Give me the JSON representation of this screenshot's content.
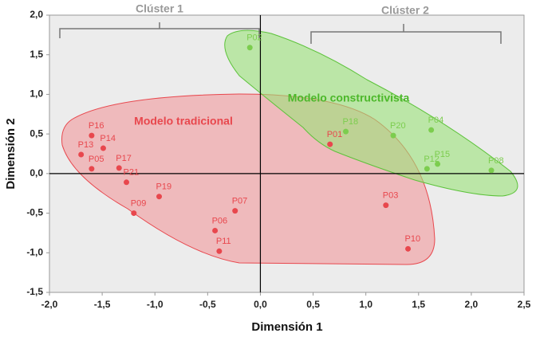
{
  "chart_data": {
    "type": "scatter",
    "x_label": "Dimensión 1",
    "y_label": "Dimensión 2",
    "xlim": [
      -2.0,
      2.5
    ],
    "xticks": [
      {
        "value": -2.0,
        "label": "-2,0"
      },
      {
        "value": -1.5,
        "label": "-1,5"
      },
      {
        "value": -1.0,
        "label": "-1,0"
      },
      {
        "value": -0.5,
        "label": "-0,5"
      },
      {
        "value": 0.0,
        "label": "0,0"
      },
      {
        "value": 0.5,
        "label": "0,5"
      },
      {
        "value": 1.0,
        "label": "1,0"
      },
      {
        "value": 1.5,
        "label": "1,5"
      },
      {
        "value": 2.0,
        "label": "2,0"
      },
      {
        "value": 2.5,
        "label": "2,5"
      }
    ],
    "ylim": [
      -1.5,
      2.0
    ],
    "yticks": [
      {
        "value": -1.5,
        "label": "-1,5"
      },
      {
        "value": -1.0,
        "label": "-1,0"
      },
      {
        "value": -0.5,
        "label": "-0,5"
      },
      {
        "value": 0.0,
        "label": "0,0"
      },
      {
        "value": 0.5,
        "label": "0,5"
      },
      {
        "value": 1.0,
        "label": "1,0"
      },
      {
        "value": 1.5,
        "label": "1,5"
      },
      {
        "value": 2.0,
        "label": "2,0"
      }
    ],
    "annotations": [
      "Clúster 1",
      "Clúster 2",
      "Modelo tradicional",
      "Modelo constructivista"
    ],
    "series": [
      {
        "name": "Modelo tradicional",
        "color": "#e8474d",
        "labels": [
          "P16",
          "P14",
          "P13",
          "P05",
          "P17",
          "P21",
          "P19",
          "P09",
          "P07",
          "P06",
          "P11",
          "P01",
          "P03",
          "P10"
        ],
        "x": [
          -1.6,
          -1.49,
          -1.7,
          -1.6,
          -1.34,
          -1.27,
          -0.96,
          -1.2,
          -0.24,
          -0.43,
          -0.39,
          0.66,
          1.19,
          1.4
        ],
        "values": [
          0.48,
          0.32,
          0.24,
          0.06,
          0.07,
          -0.11,
          -0.29,
          -0.5,
          -0.47,
          -0.72,
          -0.98,
          0.37,
          -0.4,
          -0.95
        ]
      },
      {
        "name": "Modelo constructivista",
        "color": "#7ccd4e",
        "labels": [
          "P02",
          "P18",
          "P20",
          "P04",
          "P12",
          "P15",
          "P08"
        ],
        "x": [
          -0.1,
          0.81,
          1.26,
          1.62,
          1.58,
          1.68,
          2.19
        ],
        "values": [
          1.59,
          0.53,
          0.48,
          0.55,
          0.06,
          0.12,
          0.04
        ]
      }
    ]
  }
}
